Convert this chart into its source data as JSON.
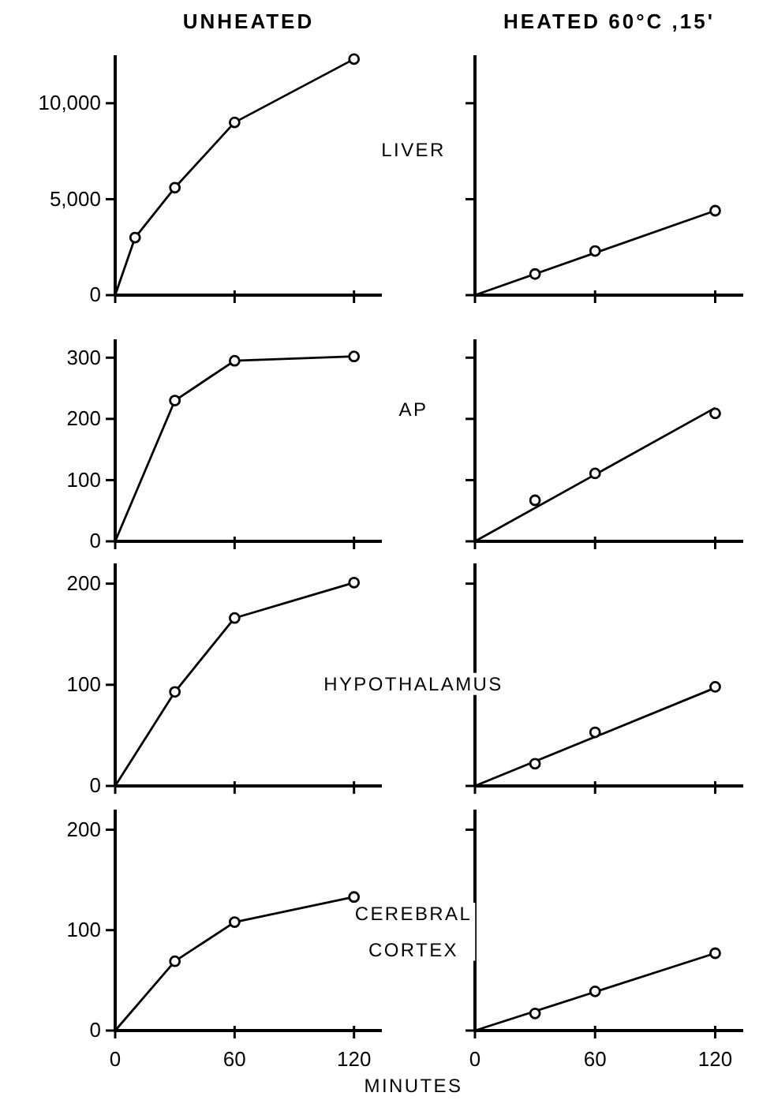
{
  "chart_data": [
    {
      "type": "line",
      "title": "UNHEATED",
      "annotations": [
        "LIVER"
      ],
      "xlim": [
        0,
        134
      ],
      "xticks": [
        0,
        60,
        120
      ],
      "ylim": [
        0,
        12500
      ],
      "yticks": [
        0,
        {
          "value": 5000,
          "label": "5,000"
        },
        {
          "value": 10000,
          "label": "10,000"
        }
      ],
      "tick_labels": "y",
      "line_style": "solid",
      "series": [
        {
          "color": "#000000",
          "marker": "none",
          "x": [
            0,
            10,
            30,
            60,
            120
          ],
          "values": [
            0,
            3000,
            5600,
            9000,
            12300
          ]
        },
        {
          "type": "scatter",
          "color": "#000000",
          "marker": "circle",
          "x": [
            10,
            30,
            60,
            120
          ],
          "values": [
            3000,
            5600,
            9000,
            12300
          ]
        }
      ]
    },
    {
      "type": "line",
      "title": "HEATED  60°C ,15'",
      "xlim": [
        0,
        134
      ],
      "xticks": [
        0,
        60,
        120
      ],
      "ylim": [
        0,
        12500
      ],
      "yticks": [
        0,
        5000,
        10000
      ],
      "tick_labels": false,
      "line_style": "solid",
      "series": [
        {
          "color": "#000000",
          "marker": "none",
          "x": [
            0,
            120
          ],
          "values": [
            0,
            4400
          ]
        },
        {
          "type": "scatter",
          "color": "#000000",
          "marker": "circle",
          "x": [
            30,
            60,
            120
          ],
          "values": [
            1100,
            2300,
            4400
          ]
        }
      ]
    },
    {
      "type": "line",
      "annotations": [
        "AP"
      ],
      "xlim": [
        0,
        134
      ],
      "xticks": [
        0,
        60,
        120
      ],
      "ylim": [
        0,
        330
      ],
      "yticks": [
        0,
        100,
        200,
        300
      ],
      "tick_labels": "y",
      "line_style": "solid",
      "series": [
        {
          "color": "#000000",
          "marker": "none",
          "x": [
            0,
            30,
            60,
            120
          ],
          "values": [
            0,
            230,
            295,
            302
          ]
        },
        {
          "type": "scatter",
          "color": "#000000",
          "marker": "circle",
          "x": [
            30,
            60,
            120
          ],
          "values": [
            230,
            295,
            302
          ]
        }
      ]
    },
    {
      "type": "line",
      "xlim": [
        0,
        134
      ],
      "xticks": [
        0,
        60,
        120
      ],
      "ylim": [
        0,
        330
      ],
      "yticks": [
        0,
        100,
        200,
        300
      ],
      "tick_labels": false,
      "line_style": "solid",
      "series": [
        {
          "color": "#000000",
          "marker": "none",
          "x": [
            0,
            120
          ],
          "values": [
            0,
            218
          ]
        },
        {
          "type": "scatter",
          "color": "#000000",
          "marker": "circle",
          "x": [
            30,
            60,
            120
          ],
          "values": [
            67,
            111,
            209
          ]
        }
      ]
    },
    {
      "type": "line",
      "annotations": [
        "HYPOTHALAMUS"
      ],
      "xlim": [
        0,
        134
      ],
      "xticks": [
        0,
        60,
        120
      ],
      "ylim": [
        0,
        220
      ],
      "yticks": [
        0,
        100,
        200
      ],
      "tick_labels": "y",
      "line_style": "solid",
      "series": [
        {
          "color": "#000000",
          "marker": "none",
          "x": [
            0,
            30,
            60,
            120
          ],
          "values": [
            0,
            93,
            166,
            201
          ]
        },
        {
          "type": "scatter",
          "color": "#000000",
          "marker": "circle",
          "x": [
            30,
            60,
            120
          ],
          "values": [
            93,
            166,
            201
          ]
        }
      ]
    },
    {
      "type": "line",
      "xlim": [
        0,
        134
      ],
      "xticks": [
        0,
        60,
        120
      ],
      "ylim": [
        0,
        220
      ],
      "yticks": [
        0,
        100,
        200
      ],
      "tick_labels": false,
      "line_style": "solid",
      "series": [
        {
          "color": "#000000",
          "marker": "none",
          "x": [
            0,
            120
          ],
          "values": [
            0,
            97
          ]
        },
        {
          "type": "scatter",
          "color": "#000000",
          "marker": "circle",
          "x": [
            30,
            60,
            120
          ],
          "values": [
            22,
            53,
            98
          ]
        }
      ]
    },
    {
      "type": "line",
      "annotations": [
        "CEREBRAL CORTEX"
      ],
      "xlabel": "MINUTES",
      "xlim": [
        0,
        134
      ],
      "xticks": [
        0,
        60,
        120
      ],
      "ylim": [
        0,
        220
      ],
      "yticks": [
        0,
        100,
        200
      ],
      "line_style": "solid",
      "series": [
        {
          "color": "#000000",
          "marker": "none",
          "x": [
            0,
            30,
            60,
            120
          ],
          "values": [
            0,
            69,
            108,
            133
          ]
        },
        {
          "type": "scatter",
          "color": "#000000",
          "marker": "circle",
          "x": [
            30,
            60,
            120
          ],
          "values": [
            69,
            108,
            133
          ]
        }
      ]
    },
    {
      "type": "line",
      "xlim": [
        0,
        134
      ],
      "xticks": [
        0,
        60,
        120
      ],
      "ylim": [
        0,
        220
      ],
      "yticks": [
        0,
        100,
        200
      ],
      "tick_labels": "x",
      "line_style": "solid",
      "series": [
        {
          "color": "#000000",
          "marker": "none",
          "x": [
            0,
            120
          ],
          "values": [
            0,
            77
          ]
        },
        {
          "type": "scatter",
          "color": "#000000",
          "marker": "circle",
          "x": [
            30,
            60,
            120
          ],
          "values": [
            17,
            39,
            77
          ]
        }
      ]
    }
  ]
}
